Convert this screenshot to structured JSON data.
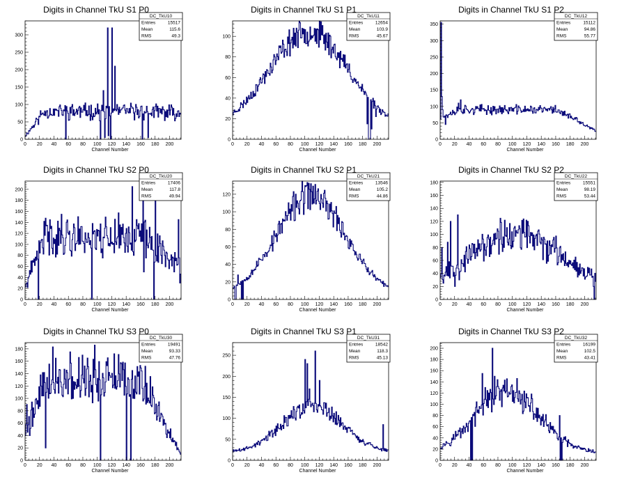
{
  "page_title": "",
  "chart_data": [
    {
      "type": "line",
      "title": "Digits in Channel TkU S1 P0",
      "xlabel": "Channel Number",
      "ylabel": "",
      "xlim": [
        0,
        216
      ],
      "ylim": [
        0,
        340
      ],
      "xticks": [
        0,
        20,
        40,
        60,
        80,
        100,
        120,
        140,
        160,
        180,
        200
      ],
      "yticks": [
        0,
        50,
        100,
        150,
        200,
        250,
        300
      ],
      "stats": {
        "name": "DC_TkU10",
        "rows": [
          [
            "Entries",
            "15517"
          ],
          [
            "Mean",
            "115.6"
          ],
          [
            "RMS",
            "49.3"
          ]
        ]
      },
      "shape": {
        "kind": "plateau",
        "peak": 80,
        "start": 10,
        "end": 75
      },
      "spikes": [
        [
          114,
          320
        ],
        [
          115,
          10
        ],
        [
          120,
          320
        ],
        [
          118,
          0
        ],
        [
          124,
          210
        ],
        [
          108,
          140
        ],
        [
          104,
          0
        ],
        [
          110,
          5
        ],
        [
          56,
          0
        ],
        [
          162,
          0
        ],
        [
          170,
          5
        ]
      ],
      "noise": 0.22,
      "seed": 11
    },
    {
      "type": "line",
      "title": "Digits in Channel TkU S1 P1",
      "xlabel": "Channel Number",
      "ylabel": "",
      "xlim": [
        0,
        216
      ],
      "ylim": [
        0,
        115
      ],
      "xticks": [
        0,
        20,
        40,
        60,
        80,
        100,
        120,
        140,
        160,
        180,
        200
      ],
      "yticks": [
        0,
        20,
        40,
        60,
        80,
        100
      ],
      "stats": {
        "name": "DC_TkU11",
        "rows": [
          [
            "Entries",
            "12654"
          ],
          [
            "Mean",
            "103.9"
          ],
          [
            "RMS",
            "45.67"
          ]
        ]
      },
      "shape": {
        "kind": "hump",
        "peak": 105,
        "center": 105,
        "width": 55,
        "base": 10
      },
      "spikes": [
        [
          188,
          0
        ],
        [
          189,
          0
        ],
        [
          190,
          0
        ],
        [
          192,
          10
        ],
        [
          198,
          22
        ],
        [
          186,
          15
        ]
      ],
      "noise": 0.1,
      "seed": 23
    },
    {
      "type": "line",
      "title": "Digits in Channel TkU S1 P2",
      "xlabel": "Channel Number",
      "ylabel": "",
      "xlim": [
        0,
        216
      ],
      "ylim": [
        0,
        360
      ],
      "xticks": [
        0,
        20,
        40,
        60,
        80,
        100,
        120,
        140,
        160,
        180,
        200
      ],
      "yticks": [
        0,
        50,
        100,
        150,
        200,
        250,
        300,
        350
      ],
      "stats": {
        "name": "DC_TkU12",
        "rows": [
          [
            "Entries",
            "15112"
          ],
          [
            "Mean",
            "94.86"
          ],
          [
            "RMS",
            "55.77"
          ]
        ]
      },
      "shape": {
        "kind": "plateau",
        "peak": 90,
        "start": 65,
        "end": 25
      },
      "spikes": [
        [
          1,
          355
        ],
        [
          2,
          130
        ],
        [
          3,
          90
        ],
        [
          25,
          110
        ],
        [
          28,
          120
        ],
        [
          7,
          45
        ]
      ],
      "noise": 0.12,
      "seed": 37
    },
    {
      "type": "line",
      "title": "Digits in Channel TkU S2 P0",
      "xlabel": "Channel Number",
      "ylabel": "",
      "xlim": [
        0,
        216
      ],
      "ylim": [
        0,
        215
      ],
      "xticks": [
        0,
        20,
        40,
        60,
        80,
        100,
        120,
        140,
        160,
        180,
        200
      ],
      "yticks": [
        0,
        20,
        40,
        60,
        80,
        100,
        120,
        140,
        160,
        180,
        200
      ],
      "stats": {
        "name": "DC_TkU20",
        "rows": [
          [
            "Entries",
            "17406"
          ],
          [
            "Mean",
            "117.8"
          ],
          [
            "RMS",
            "49.94"
          ]
        ]
      },
      "shape": {
        "kind": "plateau",
        "peak": 115,
        "start": 22,
        "end": 60
      },
      "spikes": [
        [
          18,
          0
        ],
        [
          92,
          0
        ],
        [
          148,
          205
        ],
        [
          150,
          80
        ],
        [
          163,
          190
        ],
        [
          164,
          50
        ],
        [
          178,
          0
        ],
        [
          180,
          180
        ],
        [
          212,
          145
        ],
        [
          214,
          30
        ],
        [
          60,
          118
        ]
      ],
      "noise": 0.25,
      "seed": 41
    },
    {
      "type": "line",
      "title": "Digits in Channel TkU S2 P1",
      "xlabel": "Channel Number",
      "ylabel": "",
      "xlim": [
        0,
        216
      ],
      "ylim": [
        0,
        135
      ],
      "xticks": [
        0,
        20,
        40,
        60,
        80,
        100,
        120,
        140,
        160,
        180,
        200
      ],
      "yticks": [
        0,
        20,
        40,
        60,
        80,
        100,
        120
      ],
      "stats": {
        "name": "DC_TkU21",
        "rows": [
          [
            "Entries",
            "13546"
          ],
          [
            "Mean",
            "105.2"
          ],
          [
            "RMS",
            "44.86"
          ]
        ]
      },
      "shape": {
        "kind": "hump",
        "peak": 118,
        "center": 108,
        "width": 48,
        "base": 5
      },
      "spikes": [
        [
          3,
          0
        ],
        [
          4,
          0
        ],
        [
          7,
          28
        ],
        [
          12,
          0
        ],
        [
          14,
          0
        ],
        [
          108,
          132
        ],
        [
          55,
          55
        ]
      ],
      "noise": 0.12,
      "seed": 53
    },
    {
      "type": "line",
      "title": "Digits in Channel TkU S2 P2",
      "xlabel": "Channel Number",
      "ylabel": "",
      "xlim": [
        0,
        216
      ],
      "ylim": [
        0,
        182
      ],
      "xticks": [
        0,
        20,
        40,
        60,
        80,
        100,
        120,
        140,
        160,
        180,
        200
      ],
      "yticks": [
        0,
        20,
        40,
        60,
        80,
        100,
        120,
        140,
        160,
        180
      ],
      "stats": {
        "name": "DC_TkU22",
        "rows": [
          [
            "Entries",
            "15551"
          ],
          [
            "Mean",
            "98.19"
          ],
          [
            "RMS",
            "53.44"
          ]
        ]
      },
      "shape": {
        "kind": "hump",
        "peak": 100,
        "center": 105,
        "width": 62,
        "base": 20
      },
      "spikes": [
        [
          2,
          80
        ],
        [
          4,
          25
        ],
        [
          10,
          88
        ],
        [
          24,
          130
        ],
        [
          26,
          30
        ],
        [
          14,
          120
        ],
        [
          20,
          20
        ],
        [
          212,
          20
        ],
        [
          213,
          0
        ]
      ],
      "noise": 0.22,
      "seed": 67
    },
    {
      "type": "line",
      "title": "Digits in Channel TkU S3 P0",
      "xlabel": "Channel Number",
      "ylabel": "",
      "xlim": [
        0,
        216
      ],
      "ylim": [
        0,
        190
      ],
      "xticks": [
        0,
        20,
        40,
        60,
        80,
        100,
        120,
        140,
        160,
        180,
        200
      ],
      "yticks": [
        0,
        20,
        40,
        60,
        80,
        100,
        120,
        140,
        160,
        180
      ],
      "stats": {
        "name": "DC_TkU30",
        "rows": [
          [
            "Entries",
            "19491"
          ],
          [
            "Mean",
            "93.33"
          ],
          [
            "RMS",
            "47.76"
          ]
        ]
      },
      "shape": {
        "kind": "plateau",
        "peak": 130,
        "start": 45,
        "end": 10
      },
      "spikes": [
        [
          2,
          90
        ],
        [
          6,
          40
        ],
        [
          38,
          183
        ],
        [
          62,
          175
        ],
        [
          96,
          186
        ],
        [
          104,
          0
        ],
        [
          123,
          172
        ],
        [
          140,
          0
        ],
        [
          146,
          0
        ],
        [
          28,
          20
        ]
      ],
      "noise": 0.22,
      "seed": 79
    },
    {
      "type": "line",
      "title": "Digits in Channel TkU S3 P1",
      "xlabel": "Channel Number",
      "ylabel": "",
      "xlim": [
        0,
        216
      ],
      "ylim": [
        0,
        280
      ],
      "xticks": [
        0,
        20,
        40,
        60,
        80,
        100,
        120,
        140,
        160,
        180,
        200
      ],
      "yticks": [
        0,
        50,
        100,
        150,
        200,
        250
      ],
      "stats": {
        "name": "DC_TkU31",
        "rows": [
          [
            "Entries",
            "18542"
          ],
          [
            "Mean",
            "118.3"
          ],
          [
            "RMS",
            "45.13"
          ]
        ]
      },
      "shape": {
        "kind": "hump",
        "peak": 130,
        "center": 110,
        "width": 42,
        "base": 18
      },
      "spikes": [
        [
          100,
          240
        ],
        [
          103,
          230
        ],
        [
          106,
          170
        ],
        [
          114,
          260
        ],
        [
          116,
          120
        ],
        [
          120,
          190
        ],
        [
          96,
          110
        ],
        [
          208,
          85
        ]
      ],
      "noise": 0.14,
      "seed": 89
    },
    {
      "type": "line",
      "title": "Digits in Channel TkU S3 P2",
      "xlabel": "Channel Number",
      "ylabel": "",
      "xlim": [
        0,
        216
      ],
      "ylim": [
        0,
        210
      ],
      "xticks": [
        0,
        20,
        40,
        60,
        80,
        100,
        120,
        140,
        160,
        180,
        200
      ],
      "yticks": [
        0,
        20,
        40,
        60,
        80,
        100,
        120,
        140,
        160,
        180,
        200
      ],
      "stats": {
        "name": "DC_TkU32",
        "rows": [
          [
            "Entries",
            "16199"
          ],
          [
            "Mean",
            "102.5"
          ],
          [
            "RMS",
            "43.41"
          ]
        ]
      },
      "shape": {
        "kind": "hump",
        "peak": 120,
        "center": 92,
        "width": 45,
        "base": 12
      },
      "spikes": [
        [
          42,
          0
        ],
        [
          44,
          0
        ],
        [
          58,
          155
        ],
        [
          62,
          130
        ],
        [
          72,
          200
        ],
        [
          75,
          150
        ],
        [
          166,
          0
        ],
        [
          168,
          0
        ],
        [
          165,
          80
        ],
        [
          100,
          105
        ]
      ],
      "noise": 0.18,
      "seed": 97
    }
  ]
}
